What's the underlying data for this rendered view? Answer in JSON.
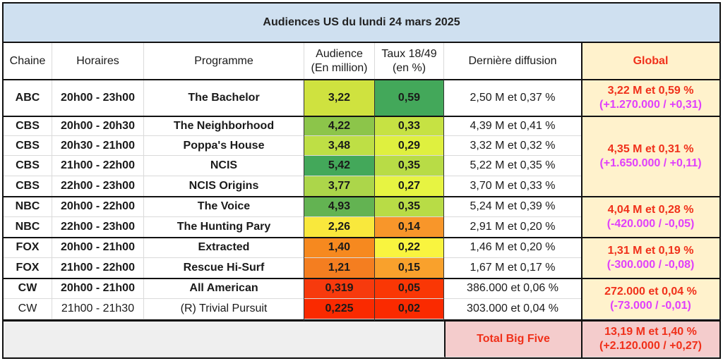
{
  "title": "Audiences US du lundi 24 mars 2025",
  "headers": {
    "chaine": "Chaine",
    "horaires": "Horaires",
    "programme": "Programme",
    "audience_l1": "Audience",
    "audience_l2": "(En million)",
    "taux_l1": "Taux 18/49",
    "taux_l2": "(en %)",
    "derniere": "Dernière diffusion",
    "global": "Global"
  },
  "rows": [
    {
      "chaine": "ABC",
      "horaires": "20h00 - 23h00",
      "programme": "The Bachelor",
      "audience": "3,22",
      "taux": "0,59",
      "derniere": "2,50 M et 0,37 %",
      "aud_color": "#cfe23f",
      "taux_color": "#43a85a",
      "bold": true
    },
    {
      "chaine": "CBS",
      "horaires": "20h00 - 20h30",
      "programme": "The Neighborhood",
      "audience": "4,22",
      "taux": "0,33",
      "derniere": "4,39 M et 0,41 %",
      "aud_color": "#8cc54a",
      "taux_color": "#c6e243",
      "bold": true
    },
    {
      "chaine": "CBS",
      "horaires": "20h30 - 21h00",
      "programme": "Poppa's House",
      "audience": "3,48",
      "taux": "0,29",
      "derniere": "3,32 M et 0,32 %",
      "aud_color": "#bedf45",
      "taux_color": "#dff03f",
      "bold": true
    },
    {
      "chaine": "CBS",
      "horaires": "21h00 - 22h00",
      "programme": "NCIS",
      "audience": "5,42",
      "taux": "0,35",
      "derniere": "5,22 M et 0,35 %",
      "aud_color": "#43a85a",
      "taux_color": "#b8dc46",
      "bold": true
    },
    {
      "chaine": "CBS",
      "horaires": "22h00 - 23h00",
      "programme": "NCIS Origins",
      "audience": "3,77",
      "taux": "0,27",
      "derniere": "3,70 M et 0,33 %",
      "aud_color": "#acd64a",
      "taux_color": "#e7f442",
      "bold": true
    },
    {
      "chaine": "NBC",
      "horaires": "20h00 - 22h00",
      "programme": "The Voice",
      "audience": "4,93",
      "taux": "0,35",
      "derniere": "5,24 M et 0,39 %",
      "aud_color": "#63b352",
      "taux_color": "#b8dc46",
      "bold": true
    },
    {
      "chaine": "NBC",
      "horaires": "22h00 - 23h00",
      "programme": "The Hunting Pary",
      "audience": "2,26",
      "taux": "0,14",
      "derniere": "2,91 M et 0,20 %",
      "aud_color": "#f9e83c",
      "taux_color": "#f8962a",
      "bold": true
    },
    {
      "chaine": "FOX",
      "horaires": "20h00 - 21h00",
      "programme": "Extracted",
      "audience": "1,40",
      "taux": "0,22",
      "derniere": "1,46 M et 0,20 %",
      "aud_color": "#f6891f",
      "taux_color": "#f9f43f",
      "bold": true
    },
    {
      "chaine": "FOX",
      "horaires": "21h00 - 22h00",
      "programme": "Rescue Hi-Surf",
      "audience": "1,21",
      "taux": "0,15",
      "derniere": "1,67 M et 0,17 %",
      "aud_color": "#f47e20",
      "taux_color": "#f9a12c",
      "bold": true
    },
    {
      "chaine": "CW",
      "horaires": "20h00 - 21h00",
      "programme": "All American",
      "audience": "0,319",
      "taux": "0,05",
      "derniere": "386.000 et 0,06 %",
      "aud_color": "#f73a0d",
      "taux_color": "#fa3705",
      "bold": true
    },
    {
      "chaine": "CW",
      "horaires": "21h00 - 21h30",
      "programme": "(R) Trivial Pursuit",
      "audience": "0,225",
      "taux": "0,02",
      "derniere": "303.000 et 0,04 %",
      "aud_color": "#fa2a00",
      "taux_color": "#fa2a00",
      "bold": false
    }
  ],
  "global": [
    {
      "network": "ABC",
      "line1": "3,22 M et 0,59 %",
      "line2": "(+1.270.000 / +0,31)"
    },
    {
      "network": "CBS",
      "line1": "4,35 M et 0,31 %",
      "line2": "(+1.650.000 / +0,11)"
    },
    {
      "network": "NBC",
      "line1": "4,04 M et 0,28 %",
      "line2": "(-420.000 / -0,05)"
    },
    {
      "network": "FOX",
      "line1": "1,31 M et 0,19 %",
      "line2": "(-300.000 / -0,08)"
    },
    {
      "network": "CW",
      "line1": "272.000 et 0,04 %",
      "line2": "(-73.000 / -0,01)"
    }
  ],
  "total": {
    "label": "Total Big Five",
    "line1": "13,19 M et 1,40 %",
    "line2": "(+2.120.000 / +0,27)"
  },
  "colors": {
    "title_bg": "#cfe0f0",
    "global_bg": "#fff2cc",
    "total_bg": "#f4cccc",
    "global_main_text": "#f0301a",
    "global_delta_text": "#e040fb"
  }
}
